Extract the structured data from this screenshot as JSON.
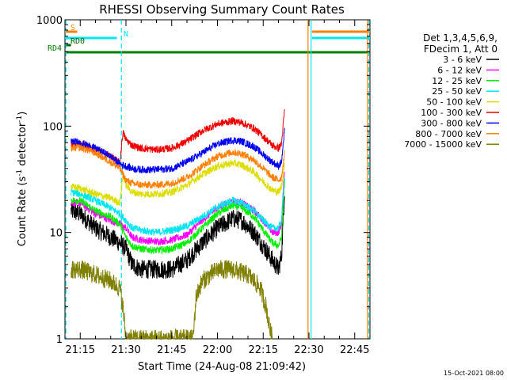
{
  "chart_data": {
    "type": "line",
    "title": "RHESSI Observing Summary Count Rates",
    "xlabel": "Start Time (24-Aug-08 21:09:42)",
    "ylabel": "Count Rate (s⁻¹ detector⁻¹)",
    "ylabel_main": "Count Rate (s",
    "ylabel_sup1": "-1",
    "ylabel_mid": " detector",
    "ylabel_sup2": "-1",
    "ylabel_end": ")",
    "y_scale": "log",
    "ylim": [
      1,
      1000
    ],
    "xlim_minutes": [
      1270,
      1370
    ],
    "x_ticks": [
      {
        "m": 1275,
        "label": "21:15"
      },
      {
        "m": 1290,
        "label": "21:30"
      },
      {
        "m": 1305,
        "label": "21:45"
      },
      {
        "m": 1320,
        "label": "22:00"
      },
      {
        "m": 1335,
        "label": "22:15"
      },
      {
        "m": 1350,
        "label": "22:30"
      },
      {
        "m": 1365,
        "label": "22:45"
      }
    ],
    "y_ticks": [
      {
        "v": 1,
        "label": "1"
      },
      {
        "v": 10,
        "label": "10"
      },
      {
        "v": 100,
        "label": "100"
      },
      {
        "v": 1000,
        "label": "1000"
      }
    ],
    "legend": {
      "header1": "Det 1,3,4,5,6,9,",
      "header2": "FDecim 1, Att 0",
      "placement": "right"
    },
    "series": [
      {
        "name": "3 - 6 keV",
        "color": "#000000",
        "points": [
          [
            1272,
            16
          ],
          [
            1275,
            15
          ],
          [
            1280,
            11
          ],
          [
            1285,
            9
          ],
          [
            1288,
            8
          ],
          [
            1290,
            7
          ],
          [
            1292,
            5
          ],
          [
            1295,
            4.5
          ],
          [
            1300,
            4.5
          ],
          [
            1305,
            4.5
          ],
          [
            1310,
            5.5
          ],
          [
            1315,
            8
          ],
          [
            1320,
            11
          ],
          [
            1325,
            13.5
          ],
          [
            1328,
            13
          ],
          [
            1332,
            10
          ],
          [
            1335,
            7.5
          ],
          [
            1338,
            5.5
          ],
          [
            1340,
            4.5
          ],
          [
            1341,
            6
          ],
          [
            1342,
            25
          ]
        ]
      },
      {
        "name": "6 - 12 keV",
        "color": "#ff00ff",
        "points": [
          [
            1272,
            19
          ],
          [
            1275,
            19
          ],
          [
            1280,
            15
          ],
          [
            1285,
            13
          ],
          [
            1288,
            12
          ],
          [
            1290,
            11
          ],
          [
            1292,
            9
          ],
          [
            1295,
            8.5
          ],
          [
            1300,
            8.2
          ],
          [
            1305,
            8.5
          ],
          [
            1310,
            9.5
          ],
          [
            1315,
            13
          ],
          [
            1320,
            17
          ],
          [
            1325,
            20
          ],
          [
            1328,
            19
          ],
          [
            1332,
            16
          ],
          [
            1335,
            13
          ],
          [
            1338,
            10
          ],
          [
            1340,
            10
          ],
          [
            1341,
            12
          ],
          [
            1342,
            40
          ]
        ]
      },
      {
        "name": "12 - 25 keV",
        "color": "#00ee00",
        "points": [
          [
            1272,
            20
          ],
          [
            1275,
            20
          ],
          [
            1280,
            16
          ],
          [
            1285,
            14
          ],
          [
            1288,
            12
          ],
          [
            1290,
            9
          ],
          [
            1292,
            7.5
          ],
          [
            1295,
            7
          ],
          [
            1300,
            6.8
          ],
          [
            1305,
            7
          ],
          [
            1310,
            8
          ],
          [
            1315,
            11
          ],
          [
            1320,
            15
          ],
          [
            1325,
            18
          ],
          [
            1328,
            17
          ],
          [
            1332,
            14
          ],
          [
            1335,
            10.5
          ],
          [
            1338,
            8
          ],
          [
            1340,
            7.5
          ],
          [
            1341,
            9
          ],
          [
            1342,
            30
          ]
        ]
      },
      {
        "name": "25 - 50 keV",
        "color": "#00e5ee",
        "points": [
          [
            1272,
            24
          ],
          [
            1275,
            23
          ],
          [
            1280,
            20
          ],
          [
            1285,
            17
          ],
          [
            1288,
            15
          ],
          [
            1290,
            13
          ],
          [
            1292,
            11
          ],
          [
            1295,
            10.5
          ],
          [
            1300,
            10
          ],
          [
            1305,
            10.5
          ],
          [
            1310,
            11.5
          ],
          [
            1315,
            14
          ],
          [
            1320,
            17.5
          ],
          [
            1325,
            20
          ],
          [
            1328,
            19
          ],
          [
            1332,
            16
          ],
          [
            1335,
            13
          ],
          [
            1338,
            11
          ],
          [
            1340,
            11
          ],
          [
            1341,
            13
          ],
          [
            1342,
            35
          ]
        ]
      },
      {
        "name": "50 - 100 keV",
        "color": "#dddd00",
        "points": [
          [
            1272,
            27
          ],
          [
            1275,
            26
          ],
          [
            1280,
            23
          ],
          [
            1285,
            21
          ],
          [
            1288,
            19
          ],
          [
            1289,
            35
          ],
          [
            1290,
            28
          ],
          [
            1292,
            24
          ],
          [
            1295,
            23
          ],
          [
            1300,
            23
          ],
          [
            1305,
            24
          ],
          [
            1310,
            28
          ],
          [
            1315,
            35
          ],
          [
            1320,
            42
          ],
          [
            1325,
            45
          ],
          [
            1328,
            43
          ],
          [
            1332,
            37
          ],
          [
            1335,
            30
          ],
          [
            1338,
            25
          ],
          [
            1340,
            24
          ],
          [
            1341,
            27
          ],
          [
            1342,
            45
          ]
        ]
      },
      {
        "name": "100 - 300 keV",
        "color": "#ee0000",
        "points": [
          [
            1272,
            68
          ],
          [
            1275,
            68
          ],
          [
            1280,
            60
          ],
          [
            1285,
            52
          ],
          [
            1288,
            45
          ],
          [
            1289,
            88
          ],
          [
            1290,
            75
          ],
          [
            1292,
            66
          ],
          [
            1295,
            62
          ],
          [
            1300,
            60
          ],
          [
            1305,
            62
          ],
          [
            1310,
            72
          ],
          [
            1315,
            90
          ],
          [
            1320,
            105
          ],
          [
            1325,
            112
          ],
          [
            1328,
            108
          ],
          [
            1332,
            95
          ],
          [
            1335,
            80
          ],
          [
            1338,
            66
          ],
          [
            1340,
            62
          ],
          [
            1341,
            68
          ],
          [
            1342,
            140
          ]
        ]
      },
      {
        "name": "300 - 800 keV",
        "color": "#0000ee",
        "points": [
          [
            1272,
            72
          ],
          [
            1275,
            70
          ],
          [
            1280,
            62
          ],
          [
            1285,
            52
          ],
          [
            1288,
            44
          ],
          [
            1290,
            42
          ],
          [
            1292,
            40
          ],
          [
            1295,
            39
          ],
          [
            1300,
            39
          ],
          [
            1305,
            40
          ],
          [
            1310,
            46
          ],
          [
            1315,
            56
          ],
          [
            1320,
            68
          ],
          [
            1325,
            74
          ],
          [
            1328,
            72
          ],
          [
            1332,
            64
          ],
          [
            1335,
            54
          ],
          [
            1338,
            46
          ],
          [
            1340,
            42
          ],
          [
            1341,
            46
          ],
          [
            1342,
            90
          ]
        ]
      },
      {
        "name": "800 - 7000 keV",
        "color": "#ff8000",
        "points": [
          [
            1272,
            62
          ],
          [
            1275,
            63
          ],
          [
            1280,
            56
          ],
          [
            1285,
            46
          ],
          [
            1288,
            40
          ],
          [
            1290,
            31
          ],
          [
            1292,
            29
          ],
          [
            1295,
            28
          ],
          [
            1300,
            28
          ],
          [
            1305,
            29
          ],
          [
            1310,
            33
          ],
          [
            1315,
            42
          ],
          [
            1320,
            52
          ],
          [
            1325,
            57
          ],
          [
            1328,
            55
          ],
          [
            1332,
            48
          ],
          [
            1335,
            40
          ],
          [
            1338,
            33
          ],
          [
            1340,
            31
          ],
          [
            1341,
            33
          ],
          [
            1342,
            55
          ]
        ]
      },
      {
        "name": "7000 - 15000 keV",
        "color": "#808000",
        "points": [
          [
            1272,
            4.5
          ],
          [
            1275,
            4.5
          ],
          [
            1280,
            4
          ],
          [
            1285,
            3.5
          ],
          [
            1288,
            3
          ],
          [
            1289,
            2
          ],
          [
            1290,
            1
          ],
          [
            1312,
            1
          ],
          [
            1313,
            2.5
          ],
          [
            1315,
            3.5
          ],
          [
            1320,
            4.5
          ],
          [
            1325,
            4.5
          ],
          [
            1330,
            4
          ],
          [
            1332,
            3.5
          ],
          [
            1334,
            3
          ],
          [
            1336,
            2
          ],
          [
            1337,
            1.3
          ],
          [
            1338,
            1
          ]
        ]
      }
    ],
    "flag_bars": [
      {
        "label": "S",
        "color": "#ff8000",
        "segments": [
          [
            1270,
            1274
          ],
          [
            1351,
            1370
          ]
        ]
      },
      {
        "label": "N",
        "color": "#00e5ee",
        "segments": [
          [
            1270,
            1287
          ],
          [
            1351,
            1370
          ]
        ]
      },
      {
        "label": "RD0",
        "color": "#006400",
        "segments": [
          [
            1270,
            1272
          ]
        ]
      },
      {
        "label": "RD4",
        "color": "#008000",
        "segments": [
          [
            1270,
            1287
          ],
          [
            1287,
            1370
          ]
        ]
      }
    ],
    "vertical_markers": [
      {
        "m": 1270.3,
        "color": "#00e5ee",
        "style": "dashed"
      },
      {
        "m": 1288.5,
        "color": "#00e5ee",
        "style": "dashed"
      },
      {
        "m": 1349.7,
        "color": "#ff8000",
        "style": "solid"
      },
      {
        "m": 1350.7,
        "color": "#00e5ee",
        "style": "solid"
      },
      {
        "m": 1369.2,
        "color": "#ff8000",
        "style": "solid"
      },
      {
        "m": 1369.6,
        "color": "#00e5ee",
        "style": "dashed"
      }
    ],
    "footer_date": "15-Oct-2021 08:00"
  }
}
